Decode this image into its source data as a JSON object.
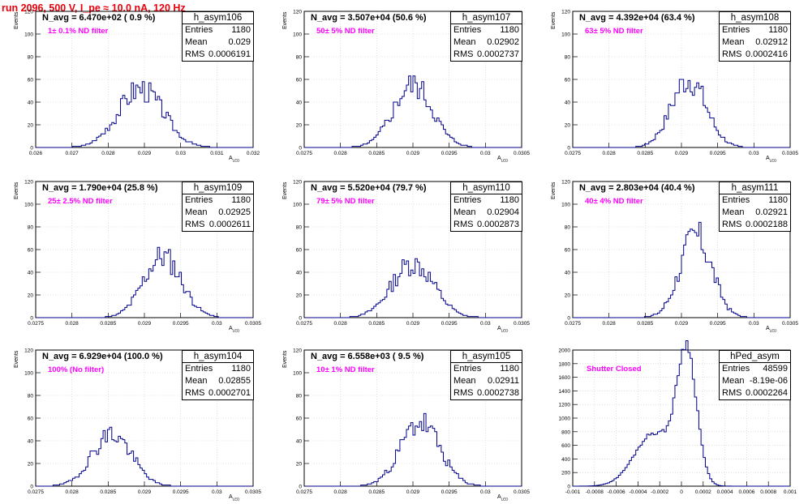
{
  "title": "run 2096,   500 V, I_pe ≈ 10.0 nA, 120 Hz",
  "colors": {
    "title": "#e8000b",
    "histogram": "#00008b",
    "annotation": "#ff00ff",
    "grid": "#cccccc"
  },
  "chart_data": [
    {
      "type": "histogram",
      "name": "h_asym106",
      "entries": "1180",
      "mean": "0.029",
      "rms": "0.0006191",
      "n_avg": "N_avg = 6.470e+02 ( 0.9 %)",
      "annotation": "1± 0.1% ND filter",
      "ylabel": "Events",
      "xlabel": "A_LED",
      "xlim": [
        0.026,
        0.032
      ],
      "ylim": [
        0,
        120
      ],
      "xticks": [
        "0.026",
        "0.027",
        "0.028",
        "0.029",
        "0.03",
        "0.031",
        "0.032"
      ],
      "yticks": [
        "0",
        "20",
        "40",
        "60",
        "80",
        "100",
        "120"
      ],
      "grid": true,
      "shape": {
        "mu": 0.0289,
        "sigma": 0.00062,
        "peak": 52,
        "seed": 3
      }
    },
    {
      "type": "histogram",
      "name": "h_asym107",
      "entries": "1180",
      "mean": "0.02902",
      "rms": "0.0002737",
      "n_avg": "N_avg = 3.507e+04 (50.6 %)",
      "annotation": "50± 5% ND filter",
      "ylabel": "Events",
      "xlabel": "A_LED",
      "xlim": [
        0.0275,
        0.0305
      ],
      "ylim": [
        0,
        120
      ],
      "xticks": [
        "0.0275",
        "0.028",
        "0.0285",
        "0.029",
        "0.0295",
        "0.03",
        "0.0305"
      ],
      "yticks": [
        "0",
        "20",
        "40",
        "60",
        "80",
        "100",
        "120"
      ],
      "grid": true,
      "shape": {
        "mu": 0.029,
        "sigma": 0.00027,
        "peak": 55,
        "seed": 5
      }
    },
    {
      "type": "histogram",
      "name": "h_asym108",
      "entries": "1180",
      "mean": "0.02912",
      "rms": "0.0002416",
      "n_avg": "N_avg = 4.392e+04 (63.4 %)",
      "annotation": "63± 5% ND filter",
      "ylabel": "Events",
      "xlabel": "A_LED",
      "xlim": [
        0.0275,
        0.0305
      ],
      "ylim": [
        0,
        120
      ],
      "xticks": [
        "0.0275",
        "0.028",
        "0.0285",
        "0.029",
        "0.0295",
        "0.03",
        "0.0305"
      ],
      "yticks": [
        "0",
        "20",
        "40",
        "60",
        "80",
        "100",
        "120"
      ],
      "grid": true,
      "shape": {
        "mu": 0.0291,
        "sigma": 0.00024,
        "peak": 60,
        "seed": 7
      }
    },
    {
      "type": "histogram",
      "name": "h_asym109",
      "entries": "1180",
      "mean": "0.02925",
      "rms": "0.0002611",
      "n_avg": "N_avg = 1.790e+04 (25.8 %)",
      "annotation": "25± 2.5% ND filter",
      "ylabel": "Events",
      "xlabel": "A_LED",
      "xlim": [
        0.0275,
        0.0305
      ],
      "ylim": [
        0,
        120
      ],
      "xticks": [
        "0.0275",
        "0.028",
        "0.0285",
        "0.029",
        "0.0295",
        "0.03",
        "0.0305"
      ],
      "yticks": [
        "0",
        "20",
        "40",
        "60",
        "80",
        "100",
        "120"
      ],
      "grid": true,
      "shape": {
        "mu": 0.02925,
        "sigma": 0.00026,
        "peak": 54,
        "seed": 11
      }
    },
    {
      "type": "histogram",
      "name": "h_asym110",
      "entries": "1180",
      "mean": "0.02904",
      "rms": "0.0002873",
      "n_avg": "N_avg = 5.520e+04 (79.7 %)",
      "annotation": "79± 5% ND filter",
      "ylabel": "Events",
      "xlabel": "A_LED",
      "xlim": [
        0.0275,
        0.0305
      ],
      "ylim": [
        0,
        120
      ],
      "xticks": [
        "0.0275",
        "0.028",
        "0.0285",
        "0.029",
        "0.0295",
        "0.03",
        "0.0305"
      ],
      "yticks": [
        "0",
        "20",
        "40",
        "60",
        "80",
        "100",
        "120"
      ],
      "grid": true,
      "shape": {
        "mu": 0.029,
        "sigma": 0.00029,
        "peak": 48,
        "seed": 13
      }
    },
    {
      "type": "histogram",
      "name": "h_asym111",
      "entries": "1180",
      "mean": "0.02921",
      "rms": "0.0002188",
      "n_avg": "N_avg = 2.803e+04 (40.4 %)",
      "annotation": "40± 4% ND filter",
      "ylabel": "Events",
      "xlabel": "A_LED",
      "xlim": [
        0.0275,
        0.0305
      ],
      "ylim": [
        0,
        120
      ],
      "xticks": [
        "0.0275",
        "0.028",
        "0.0285",
        "0.029",
        "0.0295",
        "0.03",
        "0.0305"
      ],
      "yticks": [
        "0",
        "20",
        "40",
        "60",
        "80",
        "100",
        "120"
      ],
      "grid": true,
      "shape": {
        "mu": 0.0292,
        "sigma": 0.00022,
        "peak": 72,
        "seed": 17
      }
    },
    {
      "type": "histogram",
      "name": "h_asym104",
      "entries": "1180",
      "mean": "0.02855",
      "rms": "0.0002701",
      "n_avg": "N_avg = 6.929e+04 (100.0 %)",
      "annotation": "100% (No filter)",
      "ylabel": "Events",
      "xlabel": "A_LED",
      "xlim": [
        0.0275,
        0.0305
      ],
      "ylim": [
        0,
        120
      ],
      "xticks": [
        "0.0275",
        "0.028",
        "0.0285",
        "0.029",
        "0.0295",
        "0.03",
        "0.0305"
      ],
      "yticks": [
        "0",
        "20",
        "40",
        "60",
        "80",
        "100",
        "120"
      ],
      "grid": true,
      "shape": {
        "mu": 0.02855,
        "sigma": 0.00027,
        "peak": 46,
        "seed": 19
      }
    },
    {
      "type": "histogram",
      "name": "h_asym105",
      "entries": "1180",
      "mean": "0.02911",
      "rms": "0.0002738",
      "n_avg": "N_avg = 6.558e+03 ( 9.5 %)",
      "annotation": "10± 1% ND filter",
      "ylabel": "Events",
      "xlabel": "A_LED",
      "xlim": [
        0.0275,
        0.0305
      ],
      "ylim": [
        0,
        120
      ],
      "xticks": [
        "0.0275",
        "0.028",
        "0.0285",
        "0.029",
        "0.0295",
        "0.03",
        "0.0305"
      ],
      "yticks": [
        "0",
        "20",
        "40",
        "60",
        "80",
        "100",
        "120"
      ],
      "grid": true,
      "shape": {
        "mu": 0.0291,
        "sigma": 0.00027,
        "peak": 56,
        "seed": 23
      }
    },
    {
      "type": "histogram",
      "name": "hPed_asym",
      "entries": "48599",
      "mean": "-8.19e-06",
      "rms": "0.0002264",
      "n_avg": "",
      "annotation": "Shutter Closed",
      "ylabel": "",
      "xlabel": "",
      "xlim": [
        -0.001,
        0.001
      ],
      "ylim": [
        0,
        2000
      ],
      "xticks": [
        "-0.001",
        "-0.0008",
        "-0.0006",
        "-0.0004",
        "-0.0002",
        "0",
        "0.0002",
        "0.0004",
        "0.0006",
        "0.0008",
        "0.001"
      ],
      "yticks": [
        "0",
        "200",
        "400",
        "600",
        "800",
        "1000",
        "1200",
        "1400",
        "1600",
        "1800",
        "2000"
      ],
      "grid": true,
      "shape": {
        "mu": 5e-05,
        "sigma": 9e-05,
        "peak": 1900,
        "seed": 29,
        "shoulder": {
          "mu": -0.00025,
          "sigma": 0.00018,
          "peak": 780
        }
      }
    }
  ]
}
